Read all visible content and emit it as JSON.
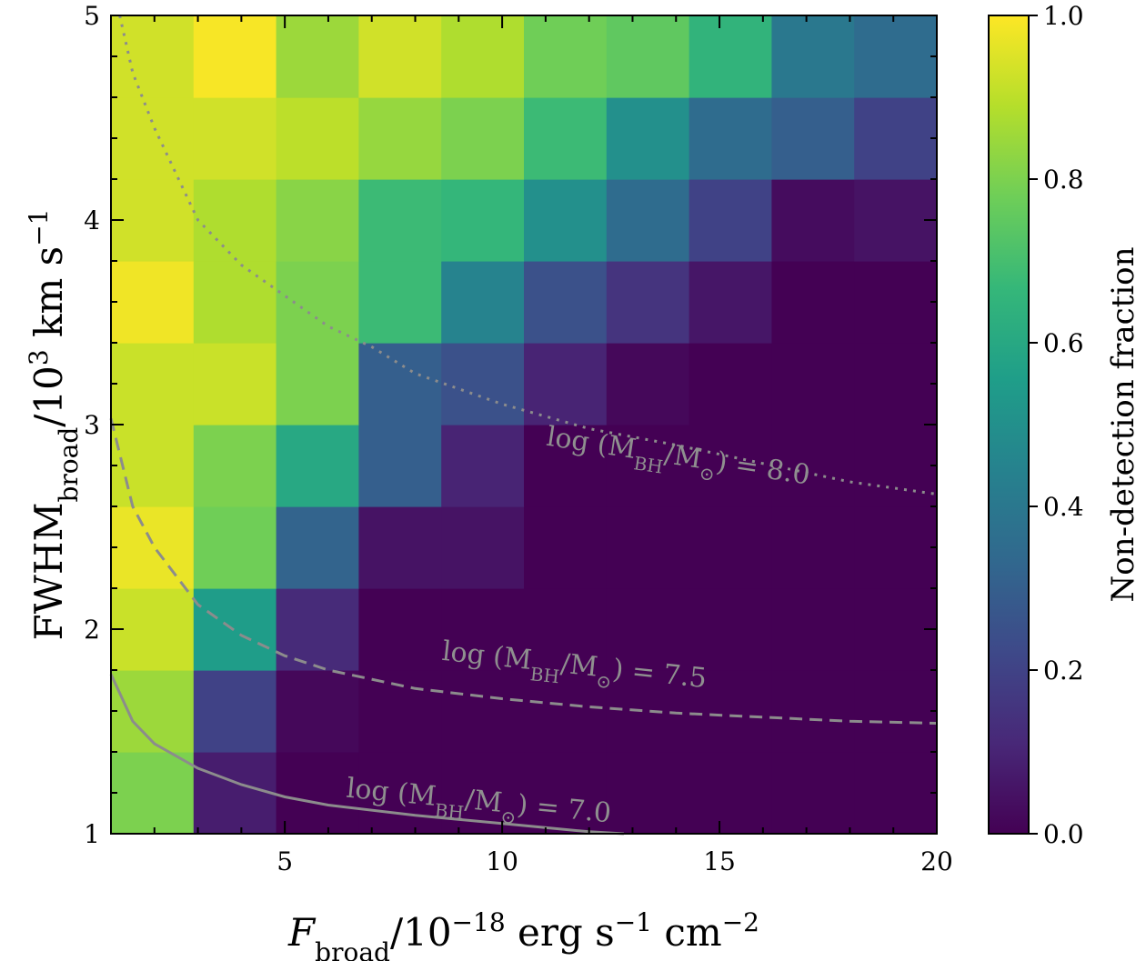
{
  "chart_data": {
    "type": "heatmap",
    "title": "",
    "xlabel": "F_broad / 10^-18 erg s^-1 cm^-2",
    "ylabel": "FWHM_broad / 10^3 km s^-1",
    "colorbar_label": "Non-detection fraction",
    "colormap": "viridis",
    "xlim": [
      1,
      20
    ],
    "ylim": [
      1,
      5
    ],
    "x_ticks": [
      "5",
      "10",
      "15",
      "20"
    ],
    "x_tick_values": [
      5,
      10,
      15,
      20
    ],
    "y_ticks": [
      "1",
      "2",
      "3",
      "4",
      "5"
    ],
    "y_tick_values": [
      1,
      2,
      3,
      4,
      5
    ],
    "colorbar_ticks": [
      "0.0",
      "0.2",
      "0.4",
      "0.6",
      "0.8",
      "1.0"
    ],
    "colorbar_tick_values": [
      0,
      0.2,
      0.4,
      0.6,
      0.8,
      1.0
    ],
    "x_bin_edges": [
      1,
      2.9,
      4.8,
      6.7,
      8.6,
      10.5,
      12.4,
      14.3,
      16.2,
      18.1,
      20
    ],
    "y_bin_edges": [
      1,
      1.4,
      1.8,
      2.2,
      2.6,
      3.0,
      3.4,
      3.8,
      4.2,
      4.6,
      5.0
    ],
    "z_rows_bottom_to_top": [
      [
        0.8,
        0.08,
        0.0,
        0.0,
        0.0,
        0.0,
        0.0,
        0.0,
        0.0,
        0.0
      ],
      [
        0.85,
        0.2,
        0.02,
        0.0,
        0.0,
        0.0,
        0.0,
        0.0,
        0.0,
        0.0
      ],
      [
        0.92,
        0.55,
        0.12,
        0.0,
        0.0,
        0.0,
        0.0,
        0.0,
        0.0,
        0.0
      ],
      [
        0.97,
        0.78,
        0.32,
        0.05,
        0.05,
        0.0,
        0.0,
        0.0,
        0.0,
        0.0
      ],
      [
        0.92,
        0.8,
        0.6,
        0.3,
        0.1,
        0.0,
        0.0,
        0.0,
        0.0,
        0.0
      ],
      [
        0.92,
        0.92,
        0.8,
        0.3,
        0.25,
        0.1,
        0.02,
        0.0,
        0.0,
        0.0
      ],
      [
        0.98,
        0.88,
        0.8,
        0.68,
        0.45,
        0.25,
        0.15,
        0.06,
        0.0,
        0.0
      ],
      [
        0.93,
        0.88,
        0.82,
        0.68,
        0.66,
        0.5,
        0.35,
        0.2,
        0.03,
        0.05
      ],
      [
        0.93,
        0.93,
        0.9,
        0.84,
        0.8,
        0.68,
        0.5,
        0.35,
        0.3,
        0.2
      ],
      [
        0.93,
        0.99,
        0.85,
        0.93,
        0.88,
        0.78,
        0.75,
        0.65,
        0.4,
        0.35
      ]
    ],
    "curves": [
      {
        "name": "log(M_BH/M_sun) = 7.0",
        "style": "solid",
        "x": [
          1,
          1.5,
          2,
          3,
          4,
          5,
          6,
          8,
          10,
          12,
          12.8
        ],
        "y": [
          1.78,
          1.55,
          1.44,
          1.32,
          1.24,
          1.18,
          1.14,
          1.09,
          1.05,
          1.01,
          1.0
        ]
      },
      {
        "name": "log(M_BH/M_sun) = 7.5",
        "style": "dashed",
        "x": [
          1,
          1.5,
          2,
          3,
          4,
          5,
          6,
          8,
          10,
          12,
          14,
          16,
          18,
          20
        ],
        "y": [
          3.03,
          2.6,
          2.4,
          2.12,
          1.97,
          1.87,
          1.8,
          1.71,
          1.66,
          1.62,
          1.59,
          1.57,
          1.55,
          1.54
        ]
      },
      {
        "name": "log(M_BH/M_sun) = 8.0",
        "style": "dotted",
        "x": [
          1.2,
          1.5,
          2,
          3,
          4,
          5,
          6,
          7,
          8,
          10,
          12,
          14,
          16,
          18,
          20
        ],
        "y": [
          5.0,
          4.72,
          4.45,
          4.0,
          3.78,
          3.63,
          3.48,
          3.38,
          3.25,
          3.1,
          2.98,
          2.9,
          2.81,
          2.72,
          2.66
        ]
      }
    ],
    "annotations": [
      {
        "x": 11.0,
        "y": 2.9,
        "rotation": 8.5
      },
      {
        "x": 8.6,
        "y": 1.85,
        "rotation": 6
      },
      {
        "x": 6.4,
        "y": 1.18,
        "rotation": 5.5
      }
    ]
  }
}
